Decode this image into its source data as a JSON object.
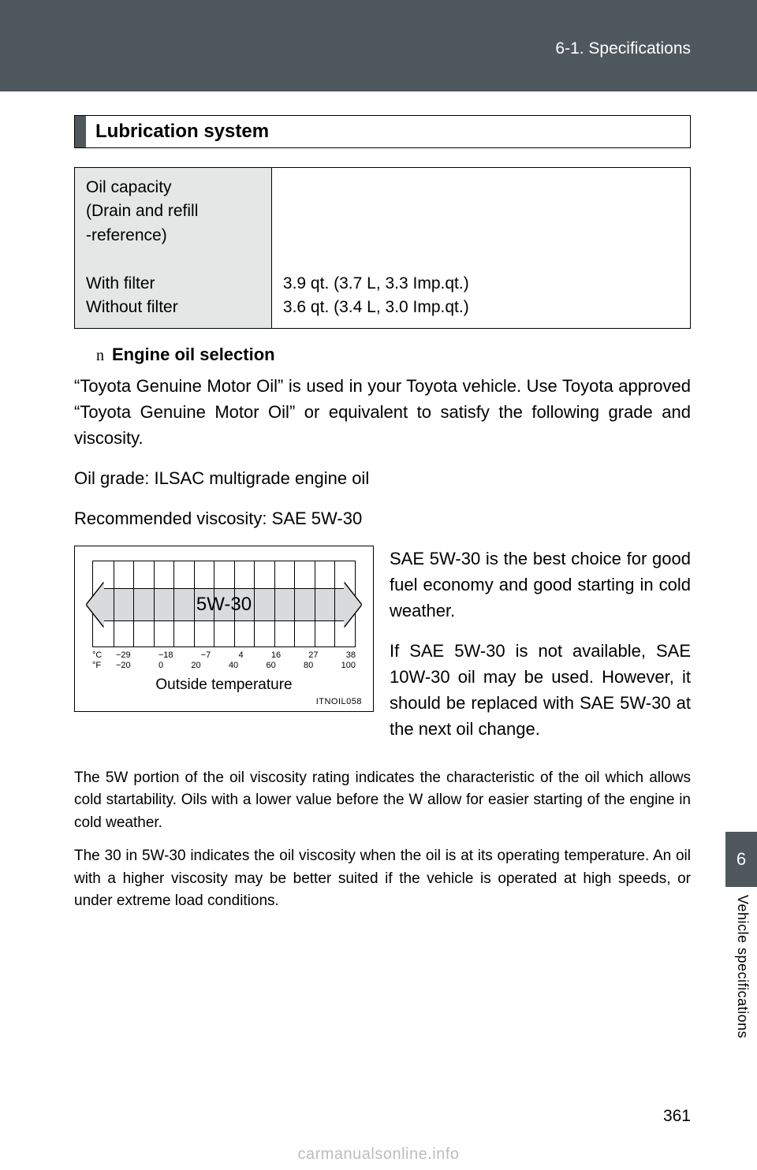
{
  "header": {
    "section": "6-1. Specifications"
  },
  "heading": "Lubrication system",
  "table": {
    "left_lines": [
      "Oil capacity",
      "(Drain and refill",
      "-reference)",
      "",
      "With filter",
      "Without filter"
    ],
    "right_lines": [
      "",
      "",
      "",
      "",
      "3.9 qt. (3.7 L, 3.3 Imp.qt.)",
      "3.6 qt. (3.4 L, 3.0 Imp.qt.)"
    ]
  },
  "subhead_marker": "n",
  "subhead": "Engine oil selection",
  "para1": "“Toyota Genuine Motor Oil” is used in your Toyota vehicle. Use Toyota approved “Toyota Genuine Motor Oil” or equivalent to satisfy the following grade and viscosity.",
  "para2": "Oil grade: ILSAC multigrade engine oil",
  "para3": "Recommended viscosity: SAE 5W-30",
  "chart": {
    "band_label": "5W-30",
    "grid_lines": 13,
    "c_unit": "°C",
    "f_unit": "°F",
    "c_ticks": [
      "−29",
      "−18",
      "−7",
      "4",
      "16",
      "27",
      "38"
    ],
    "f_ticks": [
      "−20",
      "0",
      "20",
      "40",
      "60",
      "80",
      "100"
    ],
    "caption": "Outside temperature",
    "code": "ITNOIL058",
    "band_fill": "#d9dadb"
  },
  "rpara1": "SAE 5W-30 is the best choice for good fuel economy and good starting in cold weather.",
  "rpara2": "If SAE 5W-30 is not available, SAE 10W-30 oil may be used. However, it should be replaced with SAE 5W-30 at the next oil change.",
  "small1": "The 5W portion of the oil viscosity rating indicates the characteristic of the oil which allows cold startability. Oils with a lower value before the W allow for easier starting of the engine in cold weather.",
  "small2": "The 30 in 5W-30 indicates the oil viscosity when the oil is at its operating temperature. An oil with a higher viscosity may be better suited if the vehicle is operated at high speeds, or under extreme load conditions.",
  "side": {
    "tab": "6",
    "label": "Vehicle specifications"
  },
  "page_number": "361",
  "watermark": "carmanualsonline.info"
}
